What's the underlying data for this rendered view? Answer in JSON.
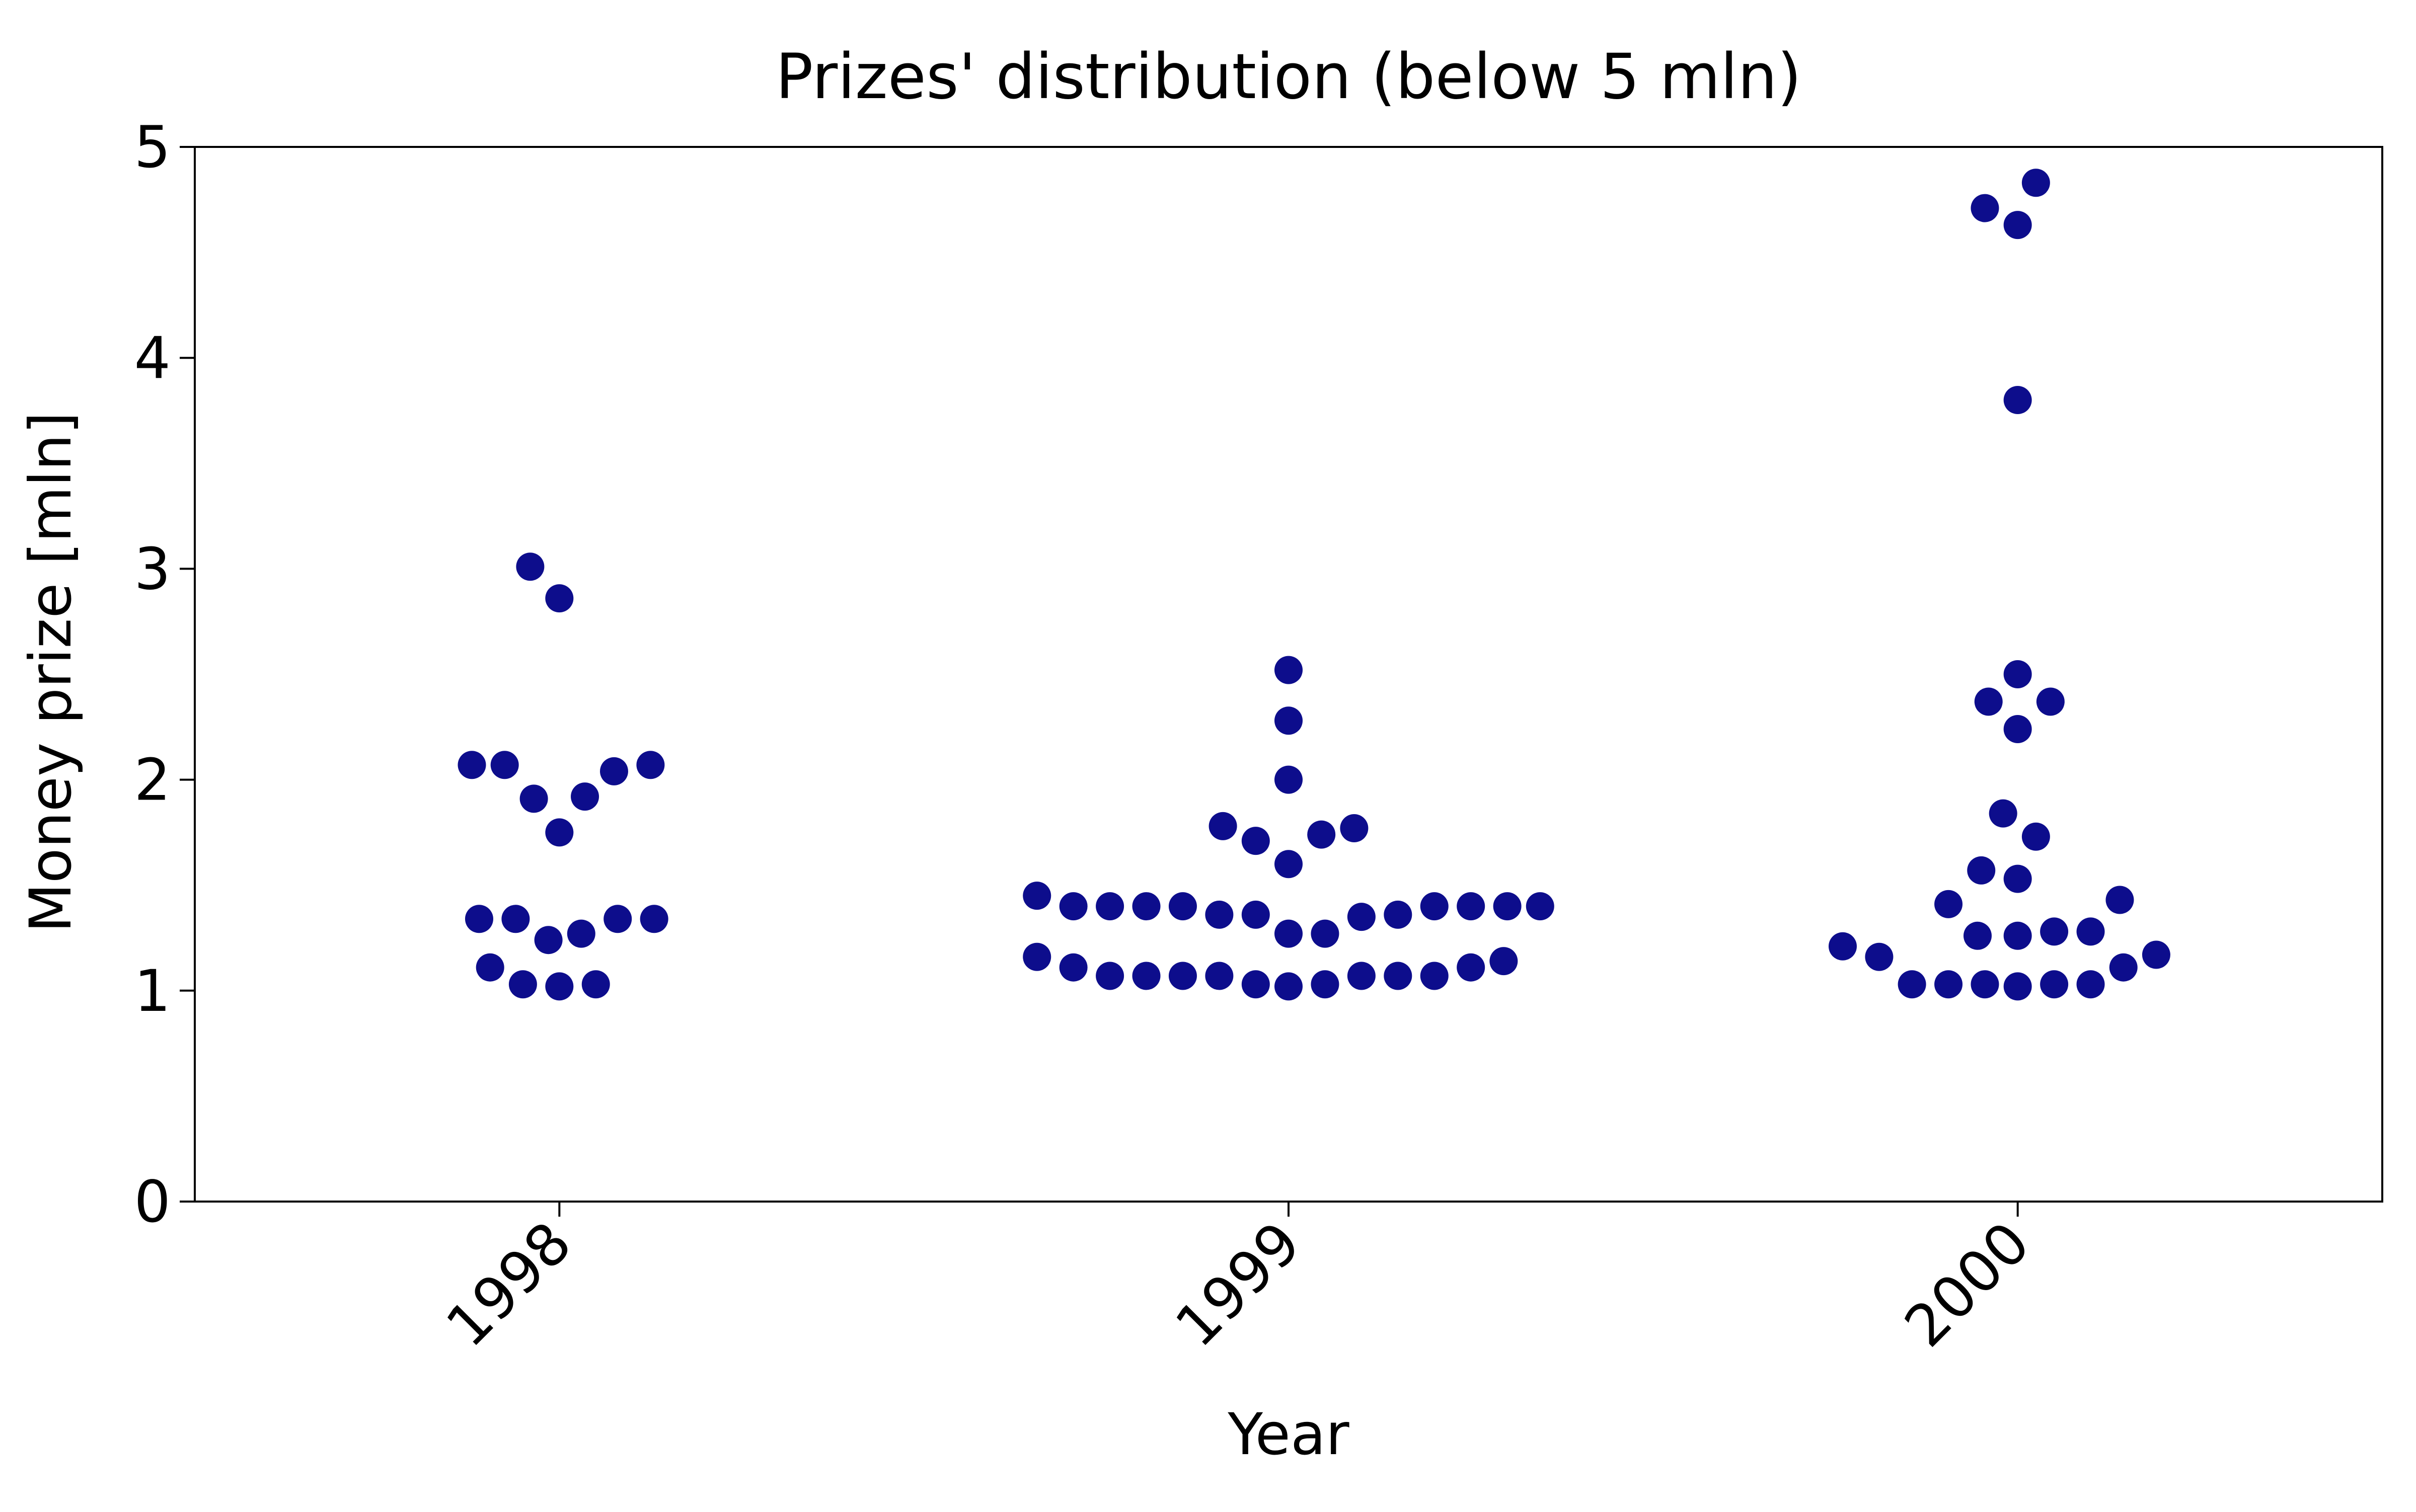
{
  "chart_data": {
    "type": "scatter",
    "title": "Prizes' distribution (below 5 mln)",
    "xlabel": "Year",
    "ylabel": "Money prize [mln]",
    "categories": [
      "1998",
      "1999",
      "2000"
    ],
    "ylim": [
      0,
      5
    ],
    "yticks": [
      "0",
      "1",
      "2",
      "3",
      "4",
      "5"
    ],
    "grid": false,
    "legend": "none",
    "marker_color": "#0d0d8c",
    "series": [
      {
        "category": "1998",
        "points": [
          {
            "offset": -0.12,
            "y": 2.07
          },
          {
            "offset": -0.075,
            "y": 2.07
          },
          {
            "offset": -0.04,
            "y": 3.01
          },
          {
            "offset": 0.0,
            "y": 2.86
          },
          {
            "offset": -0.035,
            "y": 1.91
          },
          {
            "offset": 0.035,
            "y": 1.92
          },
          {
            "offset": 0.0,
            "y": 1.75
          },
          {
            "offset": 0.075,
            "y": 2.04
          },
          {
            "offset": 0.125,
            "y": 2.07
          },
          {
            "offset": -0.11,
            "y": 1.34
          },
          {
            "offset": -0.06,
            "y": 1.34
          },
          {
            "offset": -0.015,
            "y": 1.24
          },
          {
            "offset": 0.03,
            "y": 1.27
          },
          {
            "offset": 0.08,
            "y": 1.34
          },
          {
            "offset": 0.13,
            "y": 1.34
          },
          {
            "offset": -0.095,
            "y": 1.11
          },
          {
            "offset": -0.05,
            "y": 1.03
          },
          {
            "offset": 0.0,
            "y": 1.02
          },
          {
            "offset": 0.05,
            "y": 1.03
          }
        ]
      },
      {
        "category": "1999",
        "points": [
          {
            "offset": 0.0,
            "y": 2.52
          },
          {
            "offset": 0.0,
            "y": 2.28
          },
          {
            "offset": 0.0,
            "y": 2.0
          },
          {
            "offset": -0.09,
            "y": 1.78
          },
          {
            "offset": -0.045,
            "y": 1.71
          },
          {
            "offset": 0.0,
            "y": 1.6
          },
          {
            "offset": 0.045,
            "y": 1.74
          },
          {
            "offset": 0.09,
            "y": 1.77
          },
          {
            "offset": -0.345,
            "y": 1.45
          },
          {
            "offset": -0.295,
            "y": 1.4
          },
          {
            "offset": -0.245,
            "y": 1.4
          },
          {
            "offset": -0.195,
            "y": 1.4
          },
          {
            "offset": -0.145,
            "y": 1.4
          },
          {
            "offset": -0.095,
            "y": 1.36
          },
          {
            "offset": -0.045,
            "y": 1.36
          },
          {
            "offset": 0.0,
            "y": 1.27
          },
          {
            "offset": 0.05,
            "y": 1.27
          },
          {
            "offset": 0.1,
            "y": 1.35
          },
          {
            "offset": 0.15,
            "y": 1.36
          },
          {
            "offset": 0.2,
            "y": 1.4
          },
          {
            "offset": 0.25,
            "y": 1.4
          },
          {
            "offset": 0.3,
            "y": 1.4
          },
          {
            "offset": 0.345,
            "y": 1.4
          },
          {
            "offset": -0.345,
            "y": 1.16
          },
          {
            "offset": -0.295,
            "y": 1.11
          },
          {
            "offset": -0.245,
            "y": 1.07
          },
          {
            "offset": -0.195,
            "y": 1.07
          },
          {
            "offset": -0.145,
            "y": 1.07
          },
          {
            "offset": -0.095,
            "y": 1.07
          },
          {
            "offset": -0.045,
            "y": 1.03
          },
          {
            "offset": 0.0,
            "y": 1.02
          },
          {
            "offset": 0.05,
            "y": 1.03
          },
          {
            "offset": 0.1,
            "y": 1.07
          },
          {
            "offset": 0.15,
            "y": 1.07
          },
          {
            "offset": 0.2,
            "y": 1.07
          },
          {
            "offset": 0.25,
            "y": 1.11
          },
          {
            "offset": 0.295,
            "y": 1.14
          }
        ]
      },
      {
        "category": "2000",
        "points": [
          {
            "offset": 0.025,
            "y": 4.83
          },
          {
            "offset": -0.045,
            "y": 4.71
          },
          {
            "offset": 0.0,
            "y": 4.63
          },
          {
            "offset": 0.0,
            "y": 3.8
          },
          {
            "offset": 0.0,
            "y": 2.5
          },
          {
            "offset": -0.04,
            "y": 2.37
          },
          {
            "offset": 0.045,
            "y": 2.37
          },
          {
            "offset": 0.0,
            "y": 2.24
          },
          {
            "offset": -0.02,
            "y": 1.84
          },
          {
            "offset": 0.025,
            "y": 1.73
          },
          {
            "offset": -0.05,
            "y": 1.57
          },
          {
            "offset": 0.0,
            "y": 1.53
          },
          {
            "offset": -0.095,
            "y": 1.41
          },
          {
            "offset": 0.14,
            "y": 1.43
          },
          {
            "offset": -0.055,
            "y": 1.26
          },
          {
            "offset": 0.0,
            "y": 1.26
          },
          {
            "offset": 0.05,
            "y": 1.28
          },
          {
            "offset": 0.1,
            "y": 1.28
          },
          {
            "offset": -0.24,
            "y": 1.21
          },
          {
            "offset": -0.19,
            "y": 1.16
          },
          {
            "offset": 0.19,
            "y": 1.17
          },
          {
            "offset": 0.145,
            "y": 1.11
          },
          {
            "offset": -0.145,
            "y": 1.03
          },
          {
            "offset": -0.095,
            "y": 1.03
          },
          {
            "offset": -0.045,
            "y": 1.03
          },
          {
            "offset": 0.0,
            "y": 1.02
          },
          {
            "offset": 0.05,
            "y": 1.03
          },
          {
            "offset": 0.1,
            "y": 1.03
          }
        ]
      }
    ]
  }
}
